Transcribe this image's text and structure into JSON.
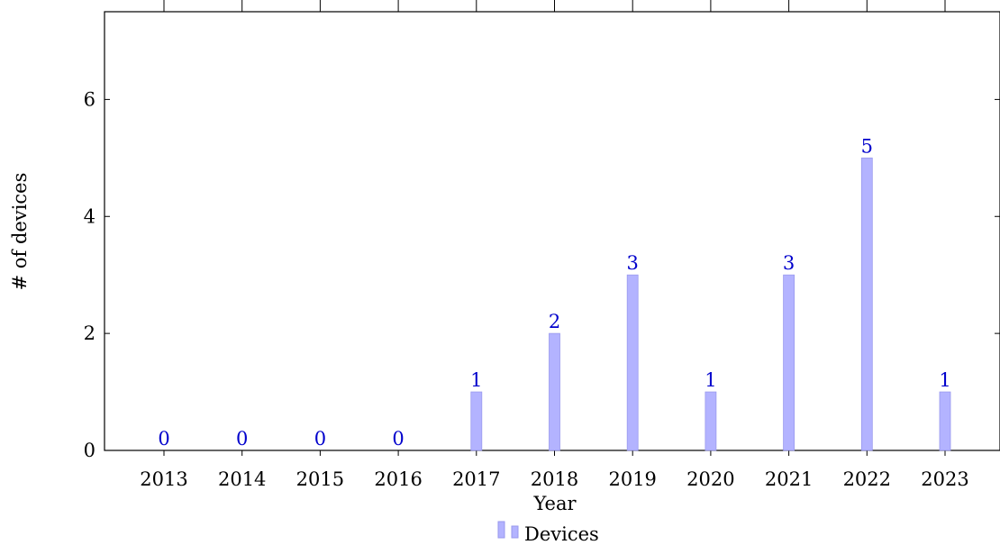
{
  "chart_data": {
    "type": "bar",
    "title": "",
    "xlabel": "Year",
    "ylabel": "# of devices",
    "categories": [
      "2013",
      "2014",
      "2015",
      "2016",
      "2017",
      "2018",
      "2019",
      "2020",
      "2021",
      "2022",
      "2023"
    ],
    "series": [
      {
        "name": "Devices",
        "values": [
          0,
          0,
          0,
          0,
          1,
          2,
          3,
          1,
          3,
          5,
          1
        ]
      }
    ],
    "ylim": [
      0,
      7.5
    ],
    "yticks": [
      0,
      2,
      4,
      6
    ],
    "grid": false,
    "legend_position": "bottom-center",
    "colors": {
      "bar_fill": "#b3b3ff",
      "bar_stroke": "#9999ee",
      "data_label": "#0000cc",
      "axis": "#000000"
    }
  }
}
